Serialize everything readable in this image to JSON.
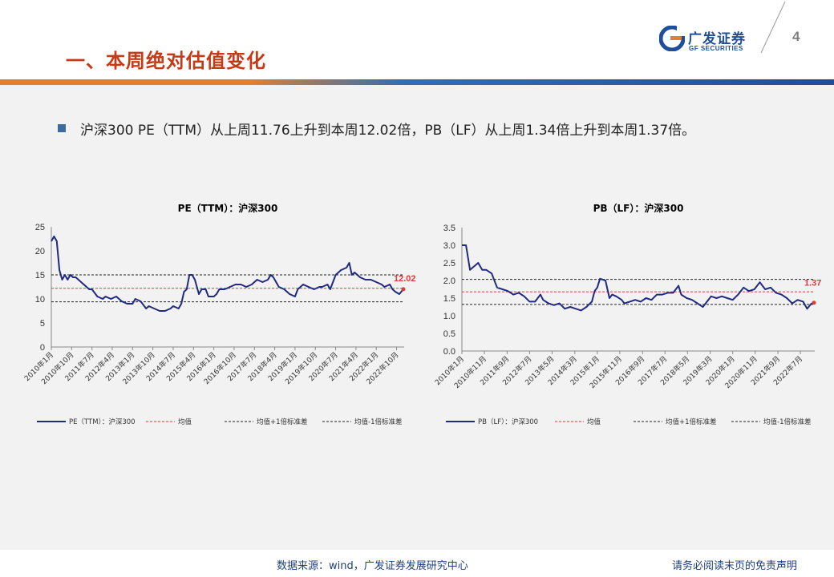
{
  "header": {
    "title": "一、本周绝对估值变化",
    "logo_cn": "广发证券",
    "logo_en": "GF SECURITIES",
    "page_number": "4"
  },
  "bullet": {
    "text": "沪深300 PE（TTM）从上周11.76上升到本周12.02倍，PB（LF）从上周1.34倍上升到本周1.37倍。"
  },
  "footer": {
    "source": "数据来源：wind，广发证券发展研究中心",
    "disclaimer": "请务必阅读末页的免责声明"
  },
  "colors": {
    "series": "#1f2a80",
    "mean": "#e03a3a",
    "band": "#222222",
    "title_red": "#c53b18"
  },
  "chart_data": [
    {
      "type": "line",
      "title": "PE（TTM）：沪深300",
      "ylim": [
        0,
        25
      ],
      "yticks": [
        0,
        5,
        10,
        15,
        20,
        25
      ],
      "xlim": [
        2010.0,
        2023.03
      ],
      "xtick_labels": [
        "2010年1月",
        "2010年10月",
        "2011年7月",
        "2012年4月",
        "2013年1月",
        "2013年10月",
        "2014年7月",
        "2015年4月",
        "2016年1月",
        "2016年10月",
        "2017年7月",
        "2018年4月",
        "2019年1月",
        "2019年10月",
        "2020年7月",
        "2021年4月",
        "2022年1月",
        "2022年10月"
      ],
      "xtick_positions": [
        2010.0,
        2010.75,
        2011.5,
        2012.25,
        2013.0,
        2013.75,
        2014.5,
        2015.25,
        2016.0,
        2016.75,
        2017.5,
        2018.25,
        2019.0,
        2019.75,
        2020.5,
        2021.25,
        2022.0,
        2022.75
      ],
      "series": [
        {
          "name": "PE（TTM）：沪深300",
          "x": [
            2010.0,
            2010.1,
            2010.2,
            2010.3,
            2010.4,
            2010.5,
            2010.6,
            2010.7,
            2010.8,
            2010.9,
            2011.0,
            2011.2,
            2011.4,
            2011.5,
            2011.7,
            2011.9,
            2012.0,
            2012.2,
            2012.4,
            2012.6,
            2012.8,
            2012.9,
            2013.0,
            2013.1,
            2013.3,
            2013.5,
            2013.6,
            2013.8,
            2014.0,
            2014.2,
            2014.4,
            2014.5,
            2014.7,
            2014.8,
            2014.9,
            2015.0,
            2015.1,
            2015.2,
            2015.3,
            2015.45,
            2015.55,
            2015.7,
            2015.8,
            2016.0,
            2016.1,
            2016.2,
            2016.4,
            2016.6,
            2016.8,
            2017.0,
            2017.2,
            2017.4,
            2017.6,
            2017.8,
            2018.0,
            2018.1,
            2018.2,
            2018.4,
            2018.6,
            2018.8,
            2019.0,
            2019.1,
            2019.3,
            2019.5,
            2019.7,
            2019.9,
            2020.0,
            2020.2,
            2020.3,
            2020.5,
            2020.7,
            2020.9,
            2021.0,
            2021.1,
            2021.2,
            2021.4,
            2021.6,
            2021.8,
            2022.0,
            2022.2,
            2022.3,
            2022.5,
            2022.6,
            2022.7,
            2022.85,
            2023.0
          ],
          "y": [
            22,
            23,
            22,
            16,
            14,
            15,
            14,
            15,
            14.5,
            14.5,
            14,
            13,
            12,
            12,
            10.5,
            10,
            10.5,
            10,
            10.5,
            9.5,
            9,
            9,
            9,
            10,
            9.5,
            8,
            8.5,
            8,
            7.5,
            7.5,
            8,
            8.5,
            8,
            9,
            11.5,
            12,
            15,
            15,
            14,
            11,
            12,
            12,
            10.5,
            10.5,
            11,
            12,
            12,
            12.5,
            13,
            13,
            12.5,
            13,
            14,
            13.5,
            14,
            15,
            14.5,
            12.5,
            12,
            11,
            10.5,
            12,
            13,
            12.5,
            12,
            12.5,
            12.5,
            13,
            12,
            15,
            16,
            16.5,
            17.5,
            15,
            15.5,
            14.5,
            14,
            14,
            13.5,
            13,
            12.5,
            13,
            12,
            11.5,
            11,
            12.02
          ]
        }
      ],
      "mean": 12.2,
      "upper": 15.0,
      "lower": 9.4,
      "last_label": "12.02",
      "legend": [
        "PE（TTM）：沪深300",
        "均值",
        "均值+1倍标准差",
        "均值-1倍标准差"
      ]
    },
    {
      "type": "line",
      "title": "PB（LF）：沪深300",
      "ylim": [
        0.0,
        3.5
      ],
      "yticks": [
        0.0,
        0.5,
        1.0,
        1.5,
        2.0,
        2.5,
        3.0,
        3.5
      ],
      "xlim": [
        2010.0,
        2023.03
      ],
      "xtick_labels": [
        "2010年1月",
        "2010年11月",
        "2011年9月",
        "2012年7月",
        "2013年5月",
        "2014年3月",
        "2015年1月",
        "2015年11月",
        "2016年9月",
        "2017年7月",
        "2018年5月",
        "2019年3月",
        "2020年1月",
        "2020年11月",
        "2021年9月",
        "2022年7月"
      ],
      "xtick_positions": [
        2010.0,
        2010.83,
        2011.67,
        2012.5,
        2013.33,
        2014.17,
        2015.0,
        2015.83,
        2016.67,
        2017.5,
        2018.33,
        2019.17,
        2020.0,
        2020.83,
        2021.67,
        2022.5
      ],
      "series": [
        {
          "name": "PB（LF）：沪深300",
          "x": [
            2010.0,
            2010.15,
            2010.3,
            2010.45,
            2010.6,
            2010.75,
            2010.9,
            2011.1,
            2011.3,
            2011.5,
            2011.7,
            2011.9,
            2012.1,
            2012.3,
            2012.5,
            2012.7,
            2012.9,
            2013.0,
            2013.2,
            2013.4,
            2013.6,
            2013.8,
            2014.0,
            2014.2,
            2014.4,
            2014.6,
            2014.8,
            2014.9,
            2015.0,
            2015.1,
            2015.3,
            2015.45,
            2015.55,
            2015.7,
            2015.9,
            2016.0,
            2016.2,
            2016.4,
            2016.6,
            2016.8,
            2017.0,
            2017.2,
            2017.4,
            2017.6,
            2017.8,
            2018.0,
            2018.1,
            2018.3,
            2018.5,
            2018.7,
            2018.9,
            2019.0,
            2019.2,
            2019.4,
            2019.6,
            2019.8,
            2020.0,
            2020.2,
            2020.4,
            2020.6,
            2020.8,
            2021.0,
            2021.2,
            2021.4,
            2021.6,
            2021.8,
            2022.0,
            2022.2,
            2022.4,
            2022.6,
            2022.75,
            2022.9,
            2023.0
          ],
          "y": [
            3.0,
            3.0,
            2.3,
            2.4,
            2.5,
            2.3,
            2.3,
            2.2,
            1.8,
            1.75,
            1.7,
            1.6,
            1.65,
            1.55,
            1.4,
            1.4,
            1.6,
            1.45,
            1.35,
            1.3,
            1.35,
            1.2,
            1.25,
            1.2,
            1.15,
            1.25,
            1.4,
            1.7,
            1.8,
            2.05,
            2.0,
            1.5,
            1.6,
            1.55,
            1.45,
            1.35,
            1.4,
            1.45,
            1.4,
            1.5,
            1.45,
            1.6,
            1.6,
            1.65,
            1.65,
            1.85,
            1.6,
            1.5,
            1.45,
            1.35,
            1.25,
            1.35,
            1.55,
            1.5,
            1.55,
            1.5,
            1.45,
            1.6,
            1.8,
            1.7,
            1.75,
            1.95,
            1.75,
            1.8,
            1.65,
            1.6,
            1.5,
            1.35,
            1.45,
            1.4,
            1.2,
            1.34,
            1.37
          ]
        }
      ],
      "mean": 1.68,
      "upper": 2.03,
      "lower": 1.32,
      "last_label": "1.37",
      "legend": [
        "PB（LF）：沪深300",
        "均值",
        "均值+1倍标准差",
        "均值-1倍标准差"
      ]
    }
  ]
}
